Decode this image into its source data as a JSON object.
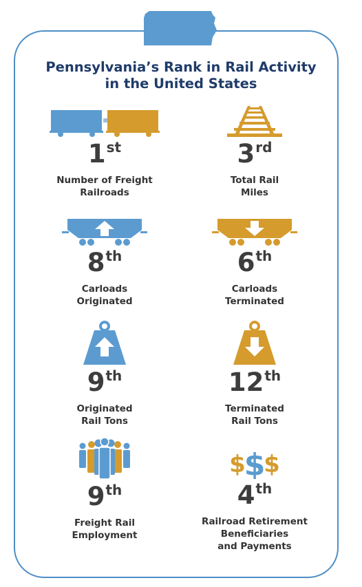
{
  "title": {
    "line1": "Pennsylvania’s Rank in Rail Activity",
    "line2": "in the United States"
  },
  "colors": {
    "blue": "#5b9bd0",
    "gold": "#d59b2d",
    "border": "#4d8ec7",
    "title": "#1f3b69",
    "text": "#333333"
  },
  "stats": [
    {
      "icon": "freight-cars-icon",
      "rank": "1",
      "suffix": "st",
      "label_lines": [
        "Number of Freight",
        "Railroads"
      ]
    },
    {
      "icon": "rail-track-icon",
      "rank": "3",
      "suffix": "rd",
      "label_lines": [
        "Total Rail",
        "Miles"
      ]
    },
    {
      "icon": "hopper-car-up-icon",
      "rank": "8",
      "suffix": "th",
      "label_lines": [
        "Carloads",
        "Originated"
      ]
    },
    {
      "icon": "hopper-car-down-icon",
      "rank": "6",
      "suffix": "th",
      "label_lines": [
        "Carloads",
        "Terminated"
      ]
    },
    {
      "icon": "weight-up-icon",
      "rank": "9",
      "suffix": "th",
      "label_lines": [
        "Originated",
        "Rail Tons"
      ]
    },
    {
      "icon": "weight-down-icon",
      "rank": "12",
      "suffix": "th",
      "label_lines": [
        "Terminated",
        "Rail Tons"
      ]
    },
    {
      "icon": "people-group-icon",
      "rank": "9",
      "suffix": "th",
      "label_lines": [
        "Freight Rail",
        "Employment"
      ]
    },
    {
      "icon": "dollar-signs-icon",
      "rank": "4",
      "suffix": "th",
      "label_lines": [
        "Railroad Retirement",
        "Beneficiaries",
        "and Payments"
      ]
    }
  ]
}
